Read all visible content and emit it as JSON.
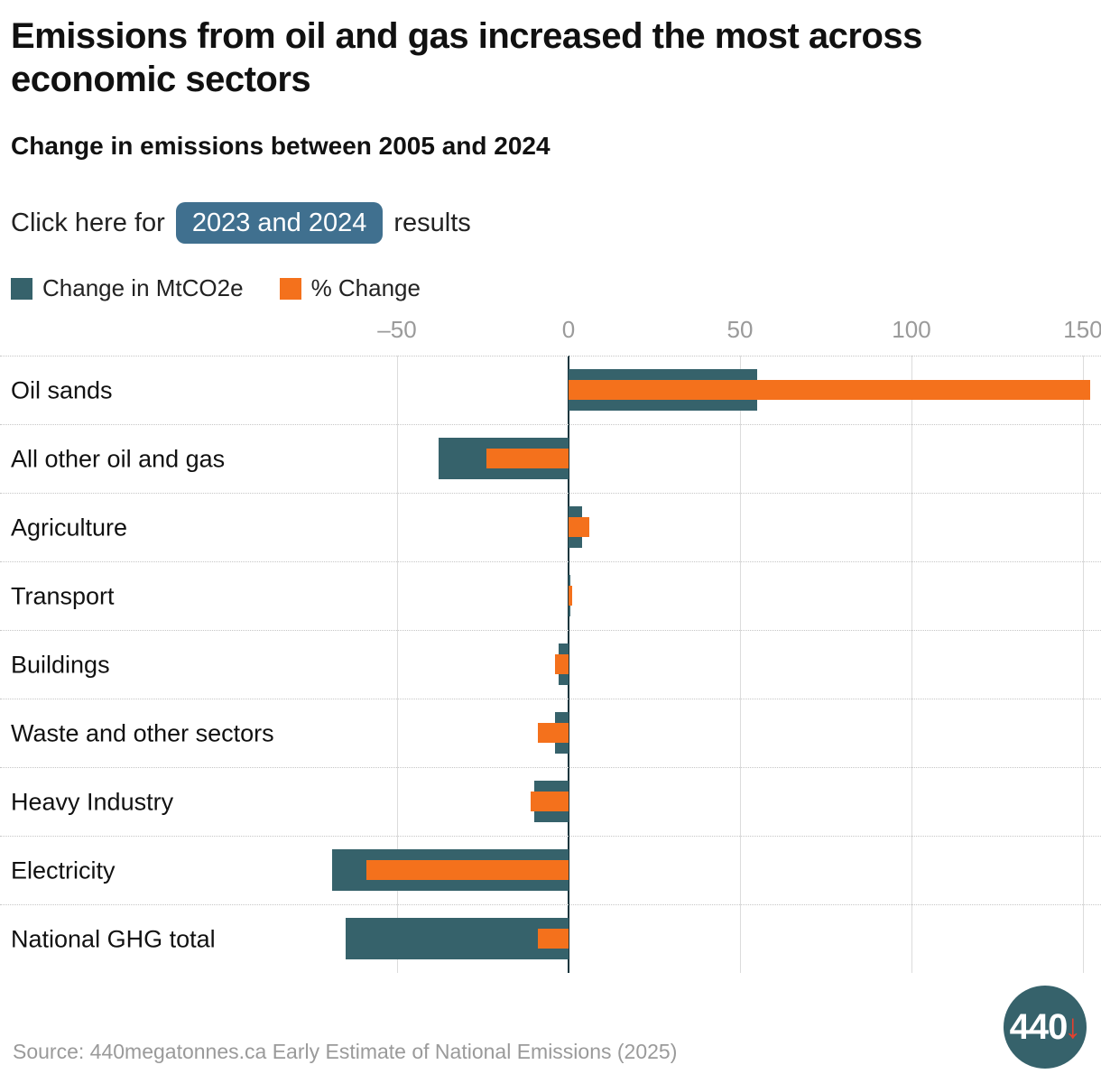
{
  "chart_data": {
    "type": "bar",
    "orientation": "horizontal",
    "title": "Emissions from oil and gas increased the most across economic sectors",
    "subtitle": "Change in emissions between 2005 and 2024",
    "categories": [
      "Oil sands",
      "All other oil and gas",
      "Agriculture",
      "Transport",
      "Buildings",
      "Waste and other sectors",
      "Heavy Industry",
      "Electricity",
      "National GHG total"
    ],
    "series": [
      {
        "name": "Change in MtCO2e",
        "color": "#36626B",
        "values": [
          55,
          -38,
          4,
          0.5,
          -3,
          -4,
          -10,
          -69,
          -65
        ]
      },
      {
        "name": "% Change",
        "color": "#F4711C",
        "values": [
          152,
          -24,
          6,
          1,
          -4,
          -9,
          -11,
          -59,
          -9
        ]
      }
    ],
    "x_ticks": [
      {
        "value": -50,
        "label": "–50"
      },
      {
        "value": 0,
        "label": "0"
      },
      {
        "value": 50,
        "label": "50"
      },
      {
        "value": 100,
        "label": "100"
      },
      {
        "value": 150,
        "label": "150"
      }
    ],
    "xlim": [
      -69,
      153
    ],
    "grid": "vertical",
    "legend_position": "top",
    "zero_line": true
  },
  "cta": {
    "prefix": "Click here for",
    "button_label": "2023 and 2024",
    "suffix": "results",
    "button_color": "#40708F"
  },
  "footer": {
    "source": "Source: 440megatonnes.ca Early Estimate of National Emissions (2025)"
  },
  "logo": {
    "text": "440",
    "arrow": "↓",
    "background": "#36626B",
    "arrow_color": "#E6402E"
  }
}
